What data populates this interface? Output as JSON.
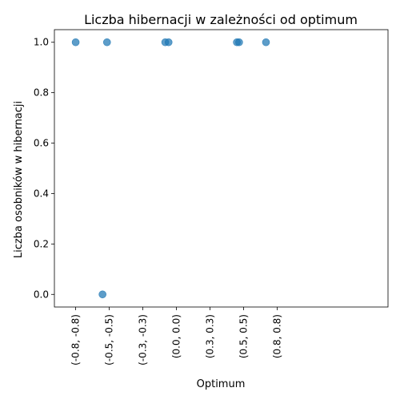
{
  "chart_data": {
    "type": "scatter",
    "title": "Liczba hibernacji w zależności od optimum",
    "xlabel": "Optimum",
    "ylabel": "Liczba osobników w hibernacji",
    "x_tick_labels": [
      "(-0.8, -0.8)",
      "(-0.5, -0.5)",
      "(-0.3, -0.3)",
      "(0.0, 0.0)",
      "(0.3, 0.3)",
      "(0.5, 0.5)",
      "(0.8, 0.8)"
    ],
    "y_ticks": [
      0.0,
      0.2,
      0.4,
      0.6,
      0.8,
      1.0
    ],
    "y_tick_labels": [
      "0.0",
      "0.2",
      "0.4",
      "0.6",
      "0.8",
      "1.0"
    ],
    "xlim": [
      -0.99,
      1.99
    ],
    "ylim": [
      -0.05,
      1.05
    ],
    "points": [
      {
        "x": -0.8,
        "y": 1
      },
      {
        "x": -0.52,
        "y": 1
      },
      {
        "x": -0.56,
        "y": 0
      },
      {
        "x": 0.0,
        "y": 1
      },
      {
        "x": 0.03,
        "y": 1
      },
      {
        "x": 0.64,
        "y": 1
      },
      {
        "x": 0.66,
        "y": 1
      },
      {
        "x": 0.9,
        "y": 1
      }
    ],
    "x_tick_positions": [
      -0.8,
      -0.5,
      -0.2,
      0.1,
      0.4,
      0.7,
      1.0
    ],
    "marker_color": "#1f77b4",
    "grid": false,
    "legend": "none"
  }
}
